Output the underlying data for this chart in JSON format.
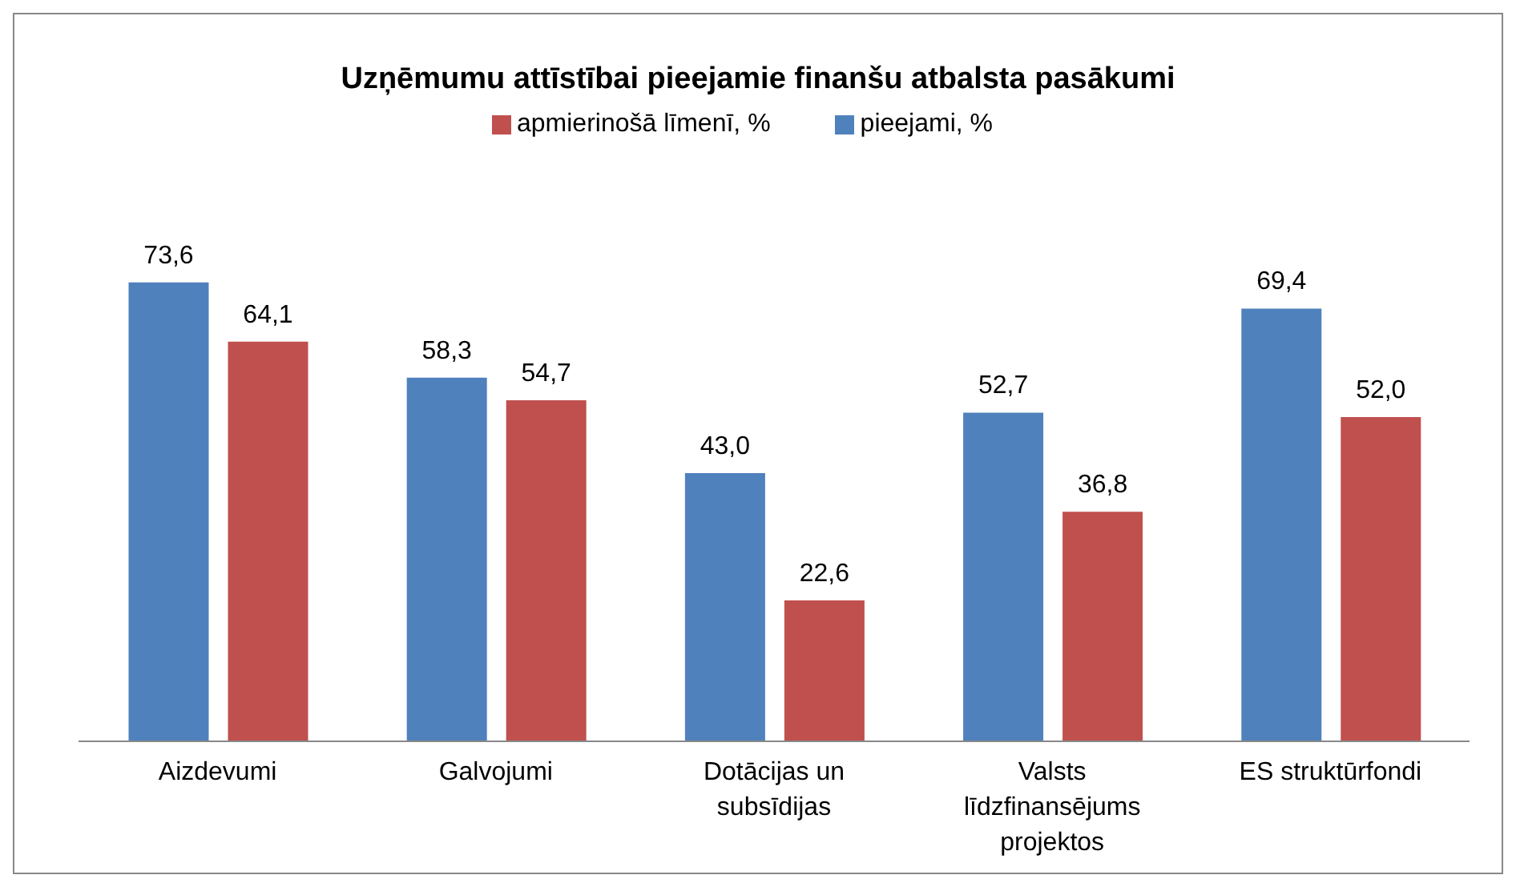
{
  "chart_data": {
    "type": "bar",
    "title": "Uzņēmumu attīstībai pieejamie finanšu atbalsta pasākumi",
    "categories": [
      "Aizdevumi",
      "Galvojumi",
      "Dotācijas un subsīdijas",
      "Valsts līdzfinansējums projektos",
      "ES struktūrfondi"
    ],
    "series": [
      {
        "name": "pieejami, %",
        "color": "#4f81bd",
        "values": [
          73.6,
          58.3,
          43.0,
          52.7,
          69.4
        ],
        "value_labels": [
          "73,6",
          "58,3",
          "43,0",
          "52,7",
          "69,4"
        ]
      },
      {
        "name": "apmierinošā līmenī, %",
        "color": "#c0504d",
        "values": [
          64.1,
          54.7,
          22.6,
          36.8,
          52.0
        ],
        "value_labels": [
          "64,1",
          "54,7",
          "22,6",
          "36,8",
          "52,0"
        ]
      }
    ],
    "legend": "top",
    "grid": false
  }
}
